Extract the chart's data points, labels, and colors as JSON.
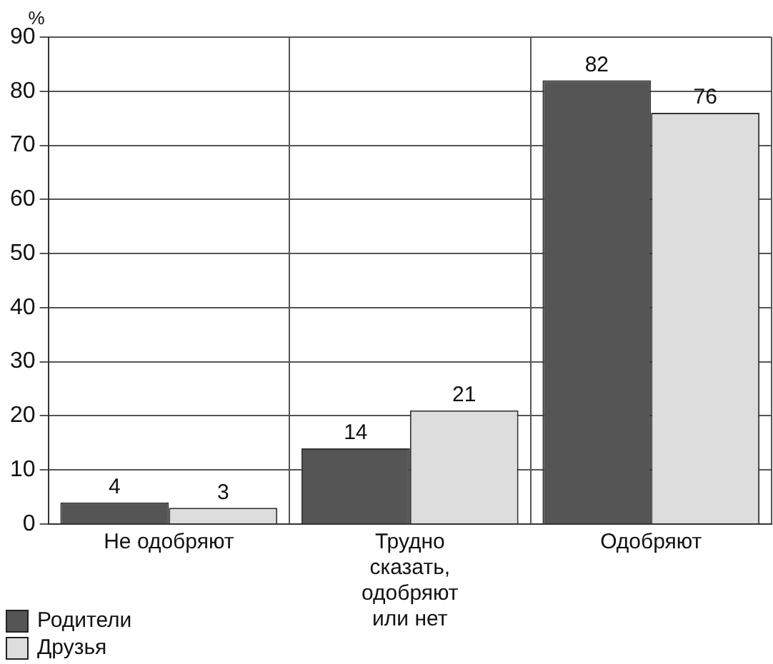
{
  "chart_data": {
    "type": "bar",
    "ylabel": "%",
    "categories": [
      "Не одобряют",
      "Трудно сказать, одобряют или нет",
      "Одобряют"
    ],
    "series": [
      {
        "name": "Родители",
        "color": "#555555",
        "values": [
          4,
          14,
          82
        ]
      },
      {
        "name": "Друзья",
        "color": "#dddddd",
        "values": [
          3,
          21,
          76
        ]
      }
    ],
    "ylim": [
      0,
      90
    ],
    "yticks": [
      0,
      10,
      20,
      30,
      40,
      50,
      60,
      70,
      80,
      90
    ],
    "grid": true,
    "legend": "bottom left",
    "data_labels": true
  }
}
